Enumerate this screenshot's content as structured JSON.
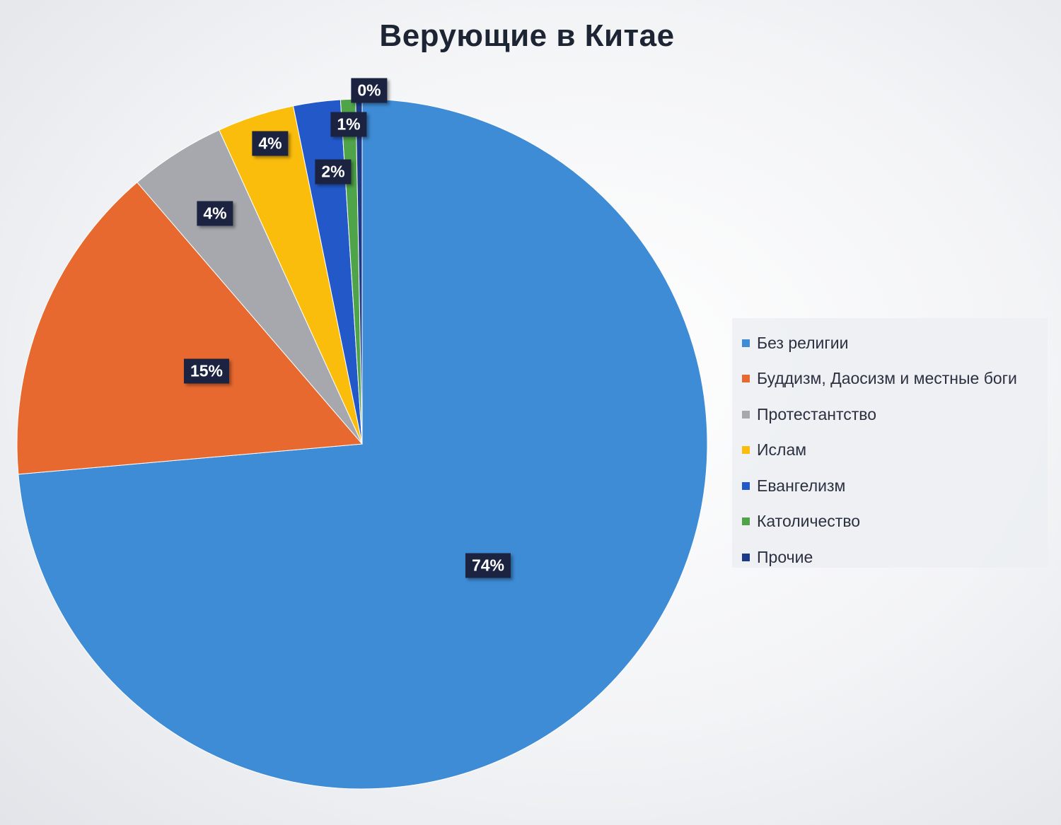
{
  "chart_data": {
    "type": "pie",
    "title": "Верующие в Китае",
    "start_angle_deg": 0,
    "direction": "clockwise",
    "slices": [
      {
        "name": "Без религии",
        "value": 73.6,
        "label": "74%",
        "color": "#3e8bd6"
      },
      {
        "name": "Буддизм, Даосизм и местные боги",
        "value": 15.1,
        "label": "15%",
        "color": "#e8692f"
      },
      {
        "name": "Протестантство",
        "value": 4.5,
        "label": "4%",
        "color": "#a6a8ad"
      },
      {
        "name": "Ислам",
        "value": 3.6,
        "label": "4%",
        "color": "#fbbd0c"
      },
      {
        "name": "Евангелизм",
        "value": 2.2,
        "label": "2%",
        "color": "#2358c9"
      },
      {
        "name": "Католичество",
        "value": 0.7,
        "label": "1%",
        "color": "#4fa348"
      },
      {
        "name": "Прочие",
        "value": 0.3,
        "label": "0%",
        "color": "#1d3a88"
      }
    ],
    "legend_position": "right"
  }
}
